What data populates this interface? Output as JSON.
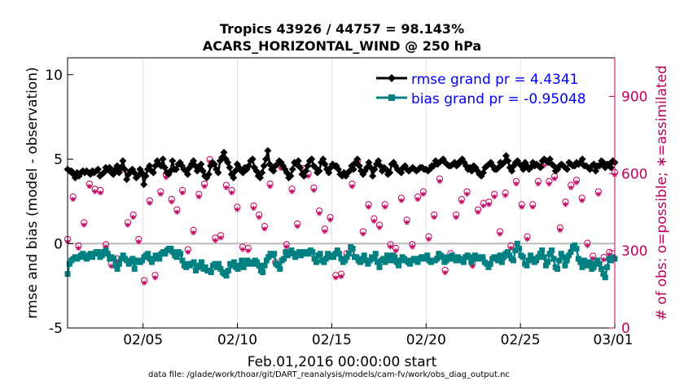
{
  "chart_data": {
    "type": "line",
    "title_line1": "Tropics 43926 / 44757 = 98.143%",
    "title_line2": "ACARS_HORIZONTAL_WIND @ 250 hPa",
    "ylabel_left": "rmse and bias (model - observation)",
    "ylabel_right": "# of obs: o=possible; ∗=assimilated",
    "xlabel": "Feb.01,2016 00:00:00 start",
    "footnote": "data file: /glade/work/thoar/git/DART_reanalysis/models/cam-fv/work/obs_diag_output.nc",
    "x_ticks": [
      {
        "day": 4,
        "label": "02/05"
      },
      {
        "day": 9,
        "label": "02/10"
      },
      {
        "day": 14,
        "label": "02/15"
      },
      {
        "day": 19,
        "label": "02/20"
      },
      {
        "day": 24,
        "label": "02/25"
      },
      {
        "day": 29,
        "label": "03/01"
      }
    ],
    "xlim": [
      0,
      29
    ],
    "ylim_left": [
      -5,
      11
    ],
    "left_ticks": [
      "-5",
      "0",
      "5",
      "10"
    ],
    "ylim_right": [
      0,
      1050
    ],
    "right_ticks": [
      "0",
      "300",
      "600",
      "900"
    ],
    "colors": {
      "rmse": "#000000",
      "bias": "#008080",
      "obs": "#c00060",
      "label": "#0000ff",
      "zero": "#bbbbbb"
    },
    "legend": {
      "position": "top-right",
      "entries": [
        {
          "name": "rmse grand pr = 4.4341",
          "series": "rmse"
        },
        {
          "name": "bias grand pr = -0.95048",
          "series": "bias"
        }
      ]
    },
    "series": [
      {
        "name": "rmse",
        "values": [
          4.4,
          4.3,
          4.3,
          4.1,
          3.9,
          4.2,
          4.0,
          4.2,
          4.3,
          4.2,
          4.3,
          4.2,
          4.1,
          4.3,
          4.2,
          4.3,
          4.4,
          4.0,
          4.1,
          4.2,
          4.5,
          4.4,
          4.5,
          4.2,
          4.1,
          4.4,
          4.6,
          4.2,
          4.5,
          4.9,
          4.4,
          3.8,
          4.1,
          4.3,
          4.4,
          4.2,
          3.9,
          4.0,
          4.4,
          4.2,
          3.5,
          4.0,
          4.4,
          4.6,
          4.3,
          4.2,
          4.6,
          4.9,
          4.7,
          4.6,
          5.0,
          4.5,
          4.2,
          4.1,
          4.3,
          4.9,
          4.4,
          4.4,
          4.7,
          4.8,
          4.6,
          4.4,
          4.3,
          4.1,
          4.5,
          4.7,
          4.9,
          4.6,
          4.3,
          4.5,
          4.7,
          4.3,
          4.0,
          3.9,
          4.1,
          4.6,
          4.8,
          4.7,
          4.4,
          4.2,
          4.9,
          5.1,
          5.4,
          5.0,
          4.8,
          4.5,
          4.1,
          3.9,
          4.3,
          4.7,
          4.5,
          4.3,
          4.2,
          4.5,
          4.4,
          4.6,
          4.9,
          5.0,
          4.5,
          4.3,
          4.0,
          3.9,
          4.2,
          4.6,
          5.0,
          5.5,
          4.7,
          4.4,
          4.3,
          4.6,
          4.7,
          4.9,
          4.8,
          4.6,
          4.4,
          4.2,
          3.9,
          4.0,
          4.4,
          4.8,
          4.7,
          4.9,
          4.5,
          4.1,
          4.0,
          4.3,
          4.6,
          4.9,
          5.0,
          4.6,
          4.5,
          4.2,
          4.3,
          4.8,
          5.0,
          4.7,
          4.4,
          4.2,
          4.5,
          4.7,
          4.6,
          4.6,
          4.4,
          4.1,
          4.0,
          4.2,
          4.0,
          4.2,
          4.3,
          4.6,
          4.4,
          4.8,
          5.0,
          4.6,
          4.3,
          4.1,
          4.3,
          4.5,
          4.8,
          4.5,
          4.0,
          4.4,
          4.7,
          4.9,
          4.6,
          4.3,
          4.5,
          4.4,
          4.1,
          4.2,
          4.7,
          4.8,
          4.6,
          4.4,
          4.3,
          4.2,
          4.5,
          4.6,
          4.4,
          4.3,
          4.4,
          4.5,
          4.4,
          4.3,
          4.4,
          4.5,
          4.5,
          4.4,
          4.4,
          4.3,
          4.4,
          4.6,
          4.6,
          4.9,
          4.7,
          4.8,
          4.9,
          5.0,
          4.8,
          4.7,
          4.6,
          4.6,
          4.7,
          4.8,
          4.6,
          4.7,
          4.9,
          5.0,
          4.8,
          4.6,
          4.4,
          4.5,
          4.3,
          4.6,
          4.5,
          4.3,
          4.1,
          4.0,
          4.2,
          4.5,
          4.6,
          4.7,
          4.8,
          4.6,
          4.4,
          4.4,
          4.5,
          4.8,
          4.7,
          4.8,
          5.2,
          4.9,
          4.5,
          4.3,
          4.6,
          4.8,
          4.9,
          4.7,
          4.6,
          4.4,
          4.8,
          4.6,
          4.4,
          4.5,
          4.8,
          4.6,
          4.7,
          4.6,
          4.5,
          4.9,
          5.0,
          4.9,
          4.8,
          5.0,
          4.7,
          4.6,
          4.3,
          4.4,
          4.6,
          4.7,
          4.6,
          4.5,
          4.4,
          4.8,
          4.7,
          4.6,
          4.6,
          4.8,
          4.7,
          4.8,
          5.0,
          4.6,
          4.6,
          4.5,
          4.4,
          4.6,
          4.7,
          4.3,
          4.6,
          4.6,
          4.9,
          4.8,
          4.5,
          4.7,
          4.7,
          4.5,
          4.9,
          4.8
        ]
      },
      {
        "name": "bias",
        "values": [
          -1.8,
          -1.2,
          -1.0,
          -0.9,
          -0.8,
          -0.9,
          -0.8,
          -0.7,
          -0.6,
          -0.8,
          -0.9,
          -0.7,
          -0.6,
          -0.8,
          -0.6,
          -0.5,
          -0.5,
          -0.8,
          -0.7,
          -0.5,
          -0.4,
          -0.6,
          -0.9,
          -0.8,
          -0.9,
          -1.3,
          -1.5,
          -1.2,
          -0.9,
          -0.7,
          -0.9,
          -1.0,
          -1.2,
          -1.1,
          -0.9,
          -1.5,
          -1.0,
          -1.1,
          -1.1,
          -1.0,
          -0.8,
          -0.7,
          -0.6,
          -0.9,
          -1.1,
          -0.9,
          -0.7,
          -0.8,
          -0.9,
          -0.6,
          -0.5,
          -0.6,
          -0.4,
          -0.3,
          -0.3,
          -0.5,
          -0.7,
          -0.8,
          -0.5,
          -0.6,
          -1.0,
          -1.3,
          -1.4,
          -1.2,
          -1.3,
          -1.2,
          -1.1,
          -1.6,
          -1.4,
          -1.3,
          -1.1,
          -1.5,
          -1.4,
          -1.6,
          -1.6,
          -1.7,
          -1.3,
          -1.2,
          -1.4,
          -1.2,
          -1.5,
          -1.7,
          -1.8,
          -1.9,
          -1.6,
          -1.2,
          -1.3,
          -1.1,
          -1.4,
          -1.5,
          -1.3,
          -1.0,
          -1.4,
          -1.2,
          -1.0,
          -1.2,
          -1.1,
          -1.2,
          -1.0,
          -1.1,
          -1.3,
          -1.6,
          -1.7,
          -1.3,
          -1.0,
          -0.8,
          -0.6,
          -0.7,
          -0.6,
          -1.2,
          -1.3,
          -1.5,
          -1.0,
          -0.9,
          -0.5,
          -0.7,
          -0.6,
          -0.4,
          -0.6,
          -0.8,
          -0.6,
          -0.5,
          -0.7,
          -0.5,
          -0.6,
          -0.5,
          -0.6,
          -0.4,
          -0.5,
          -0.9,
          -1.1,
          -0.7,
          -0.6,
          -1.0,
          -1.1,
          -0.9,
          -0.6,
          -0.8,
          -0.7,
          -0.8,
          -0.6,
          -0.4,
          -0.6,
          -0.9,
          -1.1,
          -1.0,
          -0.8,
          -0.6,
          -0.2,
          -0.3,
          -0.8,
          -0.8,
          -1.0,
          -1.1,
          -0.9,
          -0.7,
          -1.0,
          -1.2,
          -1.0,
          -0.8,
          -0.9,
          -0.6,
          -1.1,
          -1.4,
          -1.0,
          -0.9,
          -1.1,
          -0.7,
          -0.8,
          -1.0,
          -0.7,
          -0.8,
          -1.1,
          -1.3,
          -1.0,
          -0.8,
          -0.9,
          -1.0,
          -1.1,
          -1.2,
          -1.0,
          -0.9,
          -0.9,
          -1.1,
          -0.9,
          -0.8,
          -0.8,
          -0.9,
          -0.7,
          -1.0,
          -1.1,
          -1.0,
          -1.0,
          -0.9,
          -0.6,
          -0.7,
          -0.8,
          -1.1,
          -1.0,
          -0.8,
          -0.9,
          -0.7,
          -0.9,
          -1.0,
          -0.8,
          -0.9,
          -1.0,
          -1.1,
          -0.8,
          -0.7,
          -0.8,
          -1.1,
          -0.9,
          -0.7,
          -0.9,
          -0.9,
          -0.8,
          -0.8,
          -1.1,
          -1.2,
          -1.4,
          -1.2,
          -0.9,
          -0.8,
          -0.9,
          -1.0,
          -0.7,
          -1.1,
          -0.8,
          -0.6,
          -0.5,
          -0.7,
          -0.9,
          -1.0,
          -0.4,
          0.0,
          -0.3,
          -0.7,
          -0.8,
          -1.2,
          -1.3,
          -1.0,
          -0.7,
          -0.9,
          -1.1,
          -1.0,
          -0.8,
          -0.6,
          -0.4,
          -0.8,
          -1.3,
          -1.1,
          -0.6,
          -0.4,
          -0.9,
          -1.4,
          -1.5,
          -1.0,
          -0.6,
          -0.8,
          -1.3,
          -1.0,
          -0.7,
          -0.5,
          -0.2,
          -0.1,
          -0.3,
          -0.9,
          -1.1,
          -1.4,
          -1.0,
          -1.2,
          -1.3,
          -1.1,
          -1.5,
          -1.4,
          -1.2,
          -1.0,
          -1.2,
          -1.5,
          -1.8,
          -2.0,
          -1.4,
          -0.9,
          -1.0,
          -0.8,
          -0.9
        ]
      },
      {
        "name": "obs_possible",
        "values": [
          345,
          510,
          320,
          410,
          560,
          540,
          535,
          325,
          250,
          270,
          625,
          410,
          440,
          345,
          185,
          495,
          205,
          530,
          595,
          500,
          460,
          535,
          305,
          380,
          520,
          560,
          655,
          350,
          360,
          555,
          535,
          470,
          315,
          310,
          475,
          440,
          395,
          560,
          255,
          630,
          325,
          540,
          405,
          620,
          600,
          545,
          455,
          385,
          430,
          205,
          210,
          290,
          560,
          650,
          375,
          480,
          425,
          400,
          480,
          325,
          310,
          505,
          420,
          325,
          510,
          530,
          355,
          440,
          580,
          225,
          290,
          440,
          500,
          530,
          250,
          460,
          485,
          490,
          520,
          375,
          525,
          320,
          570,
          480,
          355,
          480,
          570,
          640,
          570,
          590,
          390,
          490,
          555,
          575,
          505,
          330,
          280,
          530,
          275,
          295,
          605
        ]
      },
      {
        "name": "obs_assimilated",
        "values": [
          335,
          500,
          310,
          400,
          550,
          530,
          525,
          315,
          240,
          260,
          615,
          400,
          430,
          335,
          175,
          485,
          195,
          520,
          585,
          490,
          450,
          525,
          295,
          370,
          510,
          550,
          645,
          340,
          350,
          545,
          525,
          460,
          305,
          300,
          465,
          430,
          385,
          550,
          245,
          620,
          315,
          530,
          395,
          610,
          590,
          535,
          445,
          375,
          420,
          195,
          200,
          280,
          550,
          640,
          365,
          470,
          415,
          390,
          470,
          315,
          300,
          495,
          410,
          315,
          500,
          520,
          345,
          430,
          570,
          215,
          280,
          430,
          490,
          520,
          240,
          450,
          475,
          480,
          510,
          365,
          515,
          310,
          560,
          470,
          345,
          470,
          560,
          630,
          560,
          580,
          380,
          480,
          545,
          565,
          495,
          320,
          270,
          520,
          265,
          285,
          595
        ]
      }
    ]
  }
}
